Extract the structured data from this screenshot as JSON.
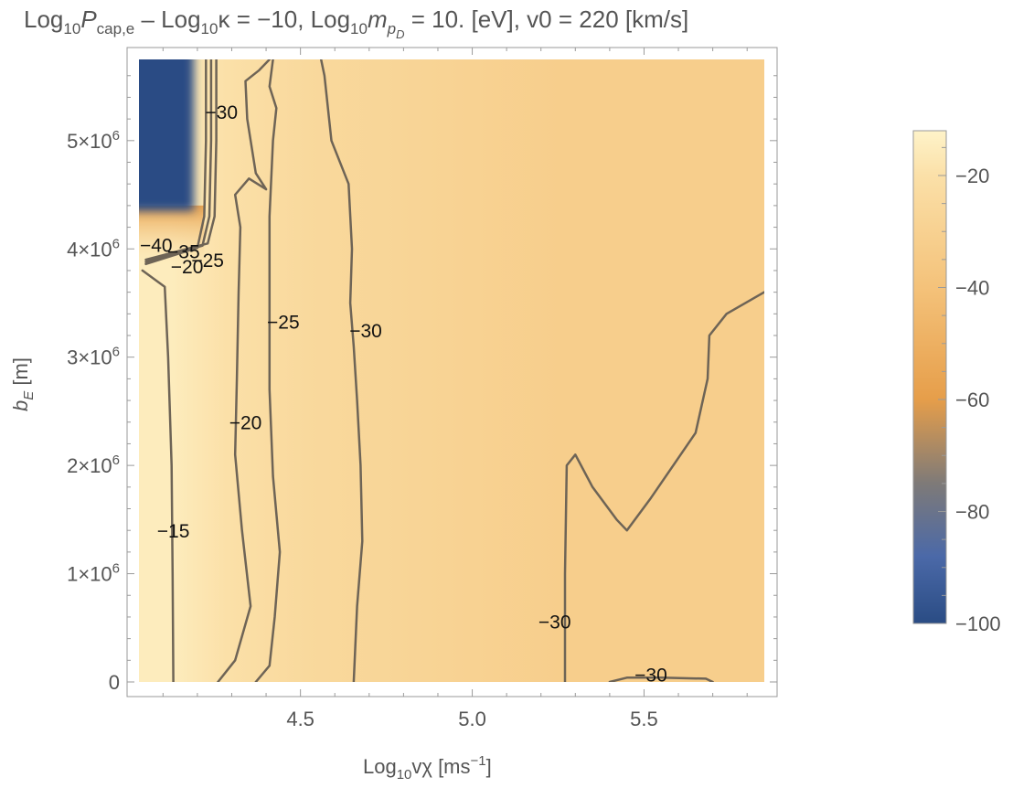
{
  "chart_data": {
    "type": "heatmap",
    "title": {
      "main": "Log",
      "sub1": "10",
      "p": "P",
      "p_sub": "cap,e",
      "middle": " – Log",
      "sub2": "10",
      "kappa": "κ = −10, Log",
      "sub3": "10",
      "m": "m",
      "m_sub": "p",
      "m_subsub": "D",
      "rest": " = 10. [eV], v0 = 220 [km/s]"
    },
    "xlabel": {
      "prefix": "Log",
      "sub": "10",
      "main": "vχ [ms",
      "sup": "−1",
      "suffix": "]"
    },
    "ylabel": {
      "main": "b",
      "sub": "E",
      "suffix": " [m]"
    },
    "xlim": [
      4.03,
      5.85
    ],
    "ylim": [
      0,
      5750000
    ],
    "x_ticks": [
      {
        "value": 4.5,
        "label": "4.5"
      },
      {
        "value": 5.0,
        "label": "5.0"
      },
      {
        "value": 5.5,
        "label": "5.5"
      }
    ],
    "y_ticks": [
      {
        "value": 0,
        "label": "0"
      },
      {
        "value": 1000000,
        "label": "1×10",
        "exp": "6"
      },
      {
        "value": 2000000,
        "label": "2×10",
        "exp": "6"
      },
      {
        "value": 3000000,
        "label": "3×10",
        "exp": "6"
      },
      {
        "value": 4000000,
        "label": "4×10",
        "exp": "6"
      },
      {
        "value": 5000000,
        "label": "5×10",
        "exp": "6"
      }
    ],
    "colorbar": {
      "range": [
        -100,
        -12
      ],
      "ticks": [
        {
          "value": -20,
          "label": "−20"
        },
        {
          "value": -40,
          "label": "−40"
        },
        {
          "value": -60,
          "label": "−60"
        },
        {
          "value": -80,
          "label": "−80"
        },
        {
          "value": -100,
          "label": "−100"
        }
      ],
      "stops": [
        {
          "value": -12,
          "color": "#fef3c9"
        },
        {
          "value": -20,
          "color": "#fbe0a8"
        },
        {
          "value": -40,
          "color": "#f4c27a"
        },
        {
          "value": -60,
          "color": "#e69e4a"
        },
        {
          "value": -75,
          "color": "#7e7a78"
        },
        {
          "value": -88,
          "color": "#4b69a8"
        },
        {
          "value": -100,
          "color": "#2a4c84"
        }
      ]
    },
    "field_regions": [
      {
        "name": "high-band",
        "x": [
          4.03,
          4.22
        ],
        "y": [
          0,
          3900000
        ],
        "value": -15
      },
      {
        "name": "second-band",
        "x": [
          4.22,
          4.35
        ],
        "y": [
          0,
          3900000
        ],
        "value": -20
      },
      {
        "name": "mid-band",
        "x": [
          4.35,
          4.68
        ],
        "y": [
          0,
          5750000
        ],
        "value": -25
      },
      {
        "name": "background",
        "x": [
          4.68,
          5.85
        ],
        "y": [
          0,
          5750000
        ],
        "value": -32
      },
      {
        "name": "blue-patch",
        "x": [
          4.03,
          4.19
        ],
        "y": [
          4350000,
          5750000
        ],
        "value": -100
      }
    ],
    "contours": [
      {
        "level": -15,
        "points": [
          [
            4.13,
            0
          ],
          [
            4.128,
            1000000
          ],
          [
            4.125,
            2000000
          ],
          [
            4.115,
            3000000
          ],
          [
            4.105,
            3650000
          ],
          [
            4.04,
            3800000
          ]
        ]
      },
      {
        "level": -20,
        "points": [
          [
            4.26,
            0
          ],
          [
            4.31,
            200000
          ],
          [
            4.355,
            700000
          ],
          [
            4.33,
            1400000
          ],
          [
            4.31,
            2100000
          ],
          [
            4.315,
            2800000
          ],
          [
            4.32,
            3600000
          ],
          [
            4.325,
            4200000
          ],
          [
            4.31,
            4500000
          ],
          [
            4.35,
            4650000
          ],
          [
            4.4,
            4550000
          ],
          [
            4.37,
            4700000
          ],
          [
            4.345,
            5200000
          ],
          [
            4.34,
            5550000
          ],
          [
            4.38,
            5650000
          ],
          [
            4.41,
            5750000
          ]
        ]
      },
      {
        "level": -25,
        "points": [
          [
            4.37,
            0
          ],
          [
            4.41,
            150000
          ],
          [
            4.425,
            600000
          ],
          [
            4.44,
            1200000
          ],
          [
            4.42,
            1900000
          ],
          [
            4.41,
            2700000
          ],
          [
            4.41,
            3500000
          ],
          [
            4.41,
            4300000
          ],
          [
            4.42,
            5000000
          ],
          [
            4.43,
            5300000
          ],
          [
            4.41,
            5500000
          ],
          [
            4.42,
            5750000
          ]
        ]
      },
      {
        "level": -30,
        "points": [
          [
            4.655,
            0
          ],
          [
            4.665,
            700000
          ],
          [
            4.68,
            1300000
          ],
          [
            4.675,
            2000000
          ],
          [
            4.665,
            2600000
          ],
          [
            4.655,
            3100000
          ],
          [
            4.645,
            3500000
          ],
          [
            4.65,
            4000000
          ],
          [
            4.64,
            4600000
          ],
          [
            4.59,
            5000000
          ],
          [
            4.58,
            5300000
          ],
          [
            4.57,
            5600000
          ],
          [
            4.56,
            5750000
          ]
        ]
      },
      {
        "level": -30,
        "points": [
          [
            5.27,
            0
          ],
          [
            5.27,
            1000000
          ],
          [
            5.275,
            2000000
          ],
          [
            5.3,
            2100000
          ],
          [
            5.35,
            1800000
          ],
          [
            5.42,
            1500000
          ],
          [
            5.45,
            1400000
          ],
          [
            5.52,
            1700000
          ],
          [
            5.65,
            2300000
          ],
          [
            5.685,
            2800000
          ],
          [
            5.69,
            3200000
          ],
          [
            5.74,
            3400000
          ],
          [
            5.85,
            3600000
          ]
        ]
      },
      {
        "level": -30,
        "points": [
          [
            5.4,
            0
          ],
          [
            5.45,
            40000
          ],
          [
            5.55,
            40000
          ],
          [
            5.68,
            30000
          ],
          [
            5.7,
            0
          ]
        ]
      },
      {
        "level": -30,
        "points": [
          [
            4.255,
            5750000
          ],
          [
            4.255,
            5000000
          ],
          [
            4.25,
            4300000
          ],
          [
            4.23,
            4050000
          ],
          [
            4.05,
            3900000
          ]
        ]
      },
      {
        "level": -35,
        "points": [
          [
            4.24,
            5750000
          ],
          [
            4.24,
            5000000
          ],
          [
            4.235,
            4300000
          ],
          [
            4.215,
            4030000
          ],
          [
            4.05,
            3880000
          ]
        ]
      },
      {
        "level": -40,
        "points": [
          [
            4.225,
            5750000
          ],
          [
            4.225,
            5000000
          ],
          [
            4.22,
            4300000
          ],
          [
            4.2,
            4010000
          ],
          [
            4.05,
            3860000
          ]
        ]
      }
    ],
    "contour_labels": [
      {
        "text": "−30",
        "x": 4.27,
        "y": 5250000
      },
      {
        "text": "−40",
        "x": 4.08,
        "y": 4020000
      },
      {
        "text": "−35",
        "x": 4.16,
        "y": 3960000
      },
      {
        "text": "−25",
        "x": 4.23,
        "y": 3880000
      },
      {
        "text": "−20",
        "x": 4.17,
        "y": 3820000
      },
      {
        "text": "−25",
        "x": 4.45,
        "y": 3310000
      },
      {
        "text": "−30",
        "x": 4.69,
        "y": 3230000
      },
      {
        "text": "−20",
        "x": 4.34,
        "y": 2380000
      },
      {
        "text": "−15",
        "x": 4.13,
        "y": 1380000
      },
      {
        "text": "−30",
        "x": 5.24,
        "y": 540000
      },
      {
        "text": "−30",
        "x": 5.52,
        "y": 50000
      }
    ]
  }
}
